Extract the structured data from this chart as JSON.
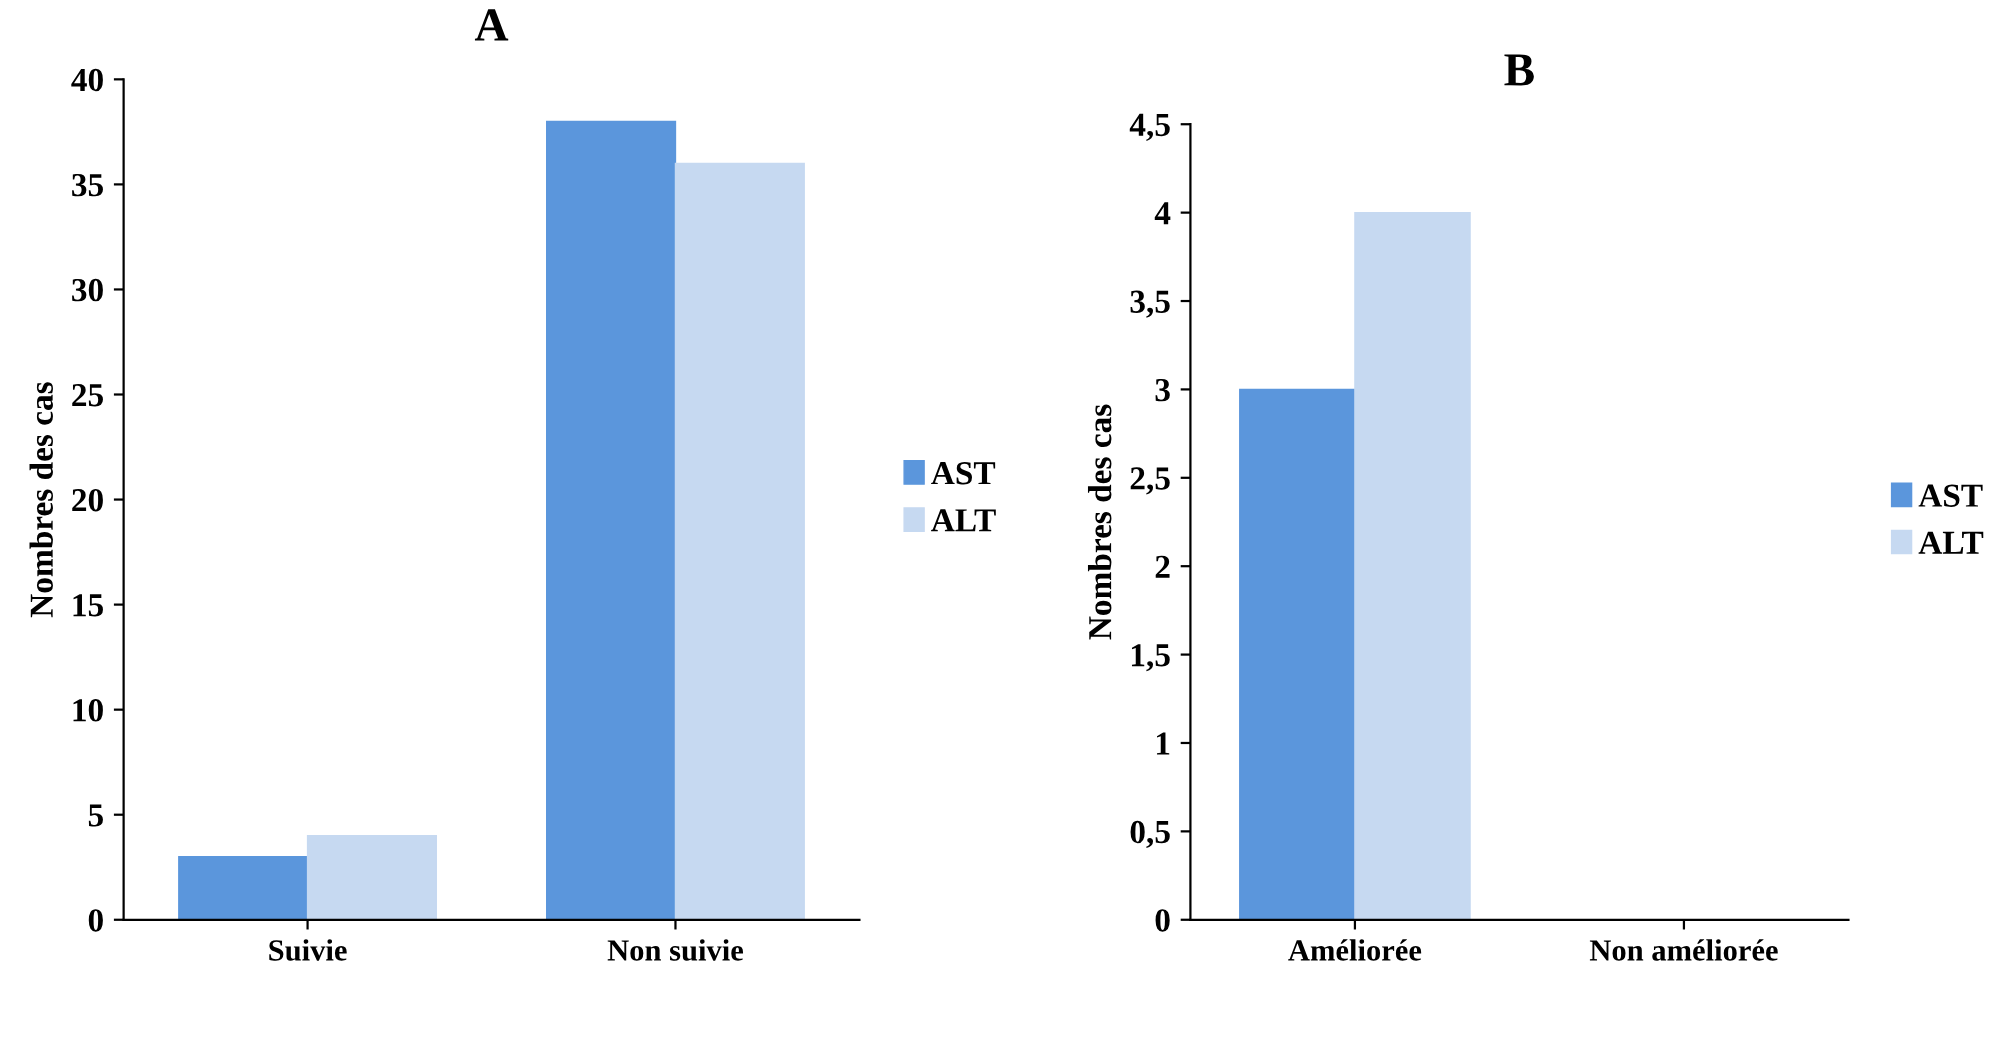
{
  "chart_data": [
    {
      "type": "bar",
      "title": "A",
      "ylabel": "Nombres des cas",
      "categories": [
        "Suivie",
        "Non suivie"
      ],
      "series": [
        {
          "name": "AST",
          "color": "#5b96dc",
          "values": [
            3,
            38
          ]
        },
        {
          "name": "ALT",
          "color": "#c6d9f1",
          "values": [
            4,
            36
          ]
        }
      ],
      "ylim": [
        0,
        40
      ],
      "yticks": [
        0,
        5,
        10,
        15,
        20,
        25,
        30,
        35,
        40
      ],
      "grid": false,
      "legend": "right"
    },
    {
      "type": "bar",
      "title": "B",
      "ylabel": "Nombres des cas",
      "categories": [
        "Améliorée",
        "Non améliorée"
      ],
      "series": [
        {
          "name": "AST",
          "color": "#5b96dc",
          "values": [
            3,
            0
          ]
        },
        {
          "name": "ALT",
          "color": "#c6d9f1",
          "values": [
            4,
            0
          ]
        }
      ],
      "ylim": [
        0,
        4.5
      ],
      "yticks": [
        0,
        {
          "value": 0.5,
          "label": "0,5"
        },
        1,
        {
          "value": 1.5,
          "label": "1,5"
        },
        2,
        {
          "value": 2.5,
          "label": "2,5"
        },
        3,
        {
          "value": 3.5,
          "label": "3,5"
        },
        4,
        {
          "value": 4.5,
          "label": "4,5"
        }
      ],
      "grid": false,
      "legend": "right"
    }
  ]
}
